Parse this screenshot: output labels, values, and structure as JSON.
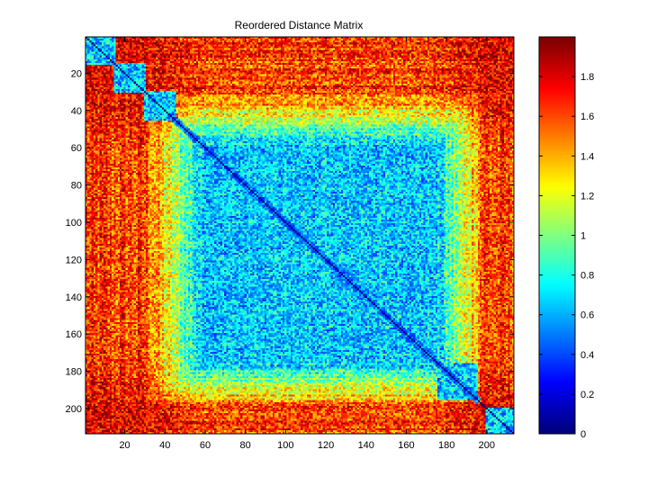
{
  "chart_data": {
    "type": "heatmap",
    "title": "Reordered Distance Matrix",
    "xlabel": "",
    "ylabel": "",
    "matrix_size": 213,
    "xlim": [
      0.5,
      213.5
    ],
    "ylim": [
      0.5,
      213.5
    ],
    "x_ticks": [
      20,
      40,
      60,
      80,
      100,
      120,
      140,
      160,
      180,
      200
    ],
    "y_ticks": [
      20,
      40,
      60,
      80,
      100,
      120,
      140,
      160,
      180,
      200
    ],
    "colormap": "jet",
    "clim": [
      0,
      2
    ],
    "colorbar_ticks": [
      0,
      0.2,
      0.4,
      0.6,
      0.8,
      1,
      1.2,
      1.4,
      1.6,
      1.8
    ],
    "diagonal_value": 0,
    "block_structure": {
      "core_range": [
        60,
        175
      ],
      "core_value_approx": 0.6,
      "edge_value_approx": 1.8,
      "small_diagonal_blocks": [
        [
          1,
          15
        ],
        [
          15,
          30
        ],
        [
          30,
          45
        ],
        [
          176,
          195
        ],
        [
          200,
          213
        ]
      ]
    }
  },
  "colors": {
    "background": "#ffffff",
    "axes_border": "#000000"
  }
}
